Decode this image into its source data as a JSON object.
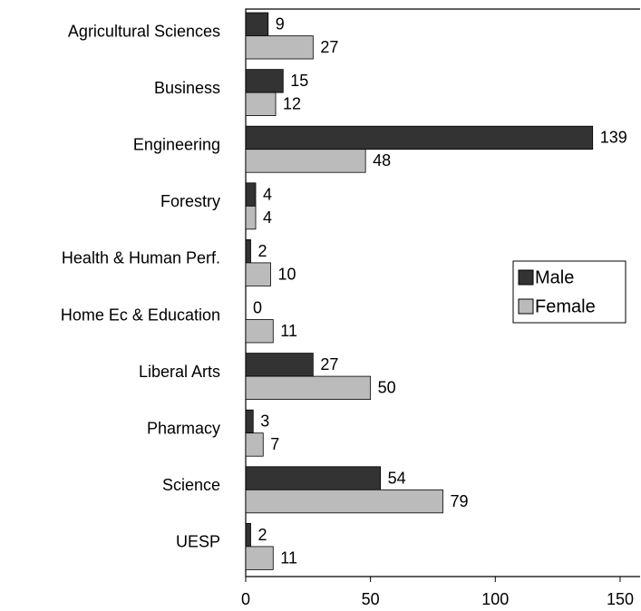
{
  "chart_data": {
    "type": "hbar",
    "categories": [
      "Agricultural Sciences",
      "Business",
      "Engineering",
      "Forestry",
      "Health & Human Perf.",
      "Home Ec & Education",
      "Liberal Arts",
      "Pharmacy",
      "Science",
      "UESP"
    ],
    "series": [
      {
        "name": "Male",
        "color": "#333333",
        "values": [
          9,
          15,
          139,
          4,
          2,
          0,
          27,
          3,
          54,
          2
        ]
      },
      {
        "name": "Female",
        "color": "#bbbbbb",
        "values": [
          27,
          12,
          48,
          4,
          10,
          11,
          50,
          7,
          79,
          11
        ]
      }
    ],
    "xlim": [
      0,
      158
    ],
    "xticks": [
      0,
      50,
      100,
      150
    ],
    "legend": "right"
  }
}
